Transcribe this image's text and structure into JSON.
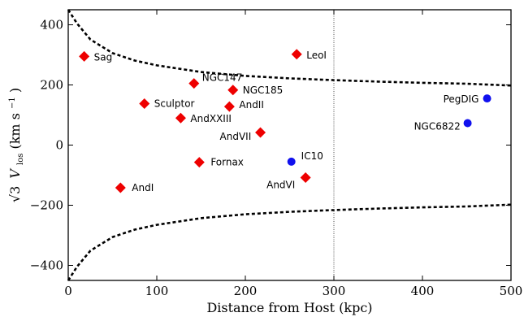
{
  "chart_data": {
    "type": "scatter",
    "title": "",
    "xlabel": "Distance from Host (kpc)",
    "ylabel_parts": {
      "root": "√3",
      "v": "V",
      "vsub": "los",
      "unit_open": " (km s",
      "unit_exp": "−1",
      "unit_close": ")"
    },
    "xlim": [
      0,
      500
    ],
    "ylim": [
      -450,
      450
    ],
    "xticks": [
      0,
      100,
      200,
      300,
      400,
      500
    ],
    "yticks": [
      -400,
      -200,
      0,
      200,
      400
    ],
    "grid": false,
    "legend": "none",
    "vline_x": 300,
    "escape_curve": {
      "x": [
        0,
        10,
        25,
        50,
        75,
        100,
        150,
        200,
        250,
        300,
        350,
        400,
        450,
        500
      ],
      "y": [
        450,
        404,
        351,
        306,
        281,
        265,
        243,
        230,
        222,
        216,
        211,
        207,
        204,
        198
      ]
    },
    "series": [
      {
        "marker": "diamond",
        "color": "#ee0000",
        "points": [
          {
            "label": "Sag",
            "x": 18,
            "y": 295,
            "lx": 12,
            "ly": 1
          },
          {
            "label": "LeoI",
            "x": 258,
            "y": 302,
            "lx": 12,
            "ly": 1
          },
          {
            "label": "NGC147",
            "x": 142,
            "y": 205,
            "lx": 10,
            "ly": -7
          },
          {
            "label": "NGC185",
            "x": 186,
            "y": 183,
            "lx": 12,
            "ly": 0
          },
          {
            "label": "Sculptor",
            "x": 86,
            "y": 138,
            "lx": 12,
            "ly": 0
          },
          {
            "label": "AndII",
            "x": 182,
            "y": 128,
            "lx": 12,
            "ly": -2
          },
          {
            "label": "AndXXIII",
            "x": 127,
            "y": 90,
            "lx": 12,
            "ly": 1
          },
          {
            "label": "AndVII",
            "x": 217,
            "y": 42,
            "lx": -50,
            "ly": 5
          },
          {
            "label": "Fornax",
            "x": 148,
            "y": -57,
            "lx": 14,
            "ly": 0
          },
          {
            "label": "AndVI",
            "x": 268,
            "y": -108,
            "lx": -48,
            "ly": 9
          },
          {
            "label": "AndI",
            "x": 59,
            "y": -142,
            "lx": 14,
            "ly": 0
          }
        ]
      },
      {
        "marker": "circle",
        "color": "#1111ee",
        "points": [
          {
            "label": "PegDIG",
            "x": 473,
            "y": 155,
            "lx": -54,
            "ly": 1
          },
          {
            "label": "NGC6822",
            "x": 451,
            "y": 73,
            "lx": -66,
            "ly": 4
          },
          {
            "label": "IC10",
            "x": 252,
            "y": -55,
            "lx": 12,
            "ly": -7
          }
        ]
      }
    ]
  }
}
